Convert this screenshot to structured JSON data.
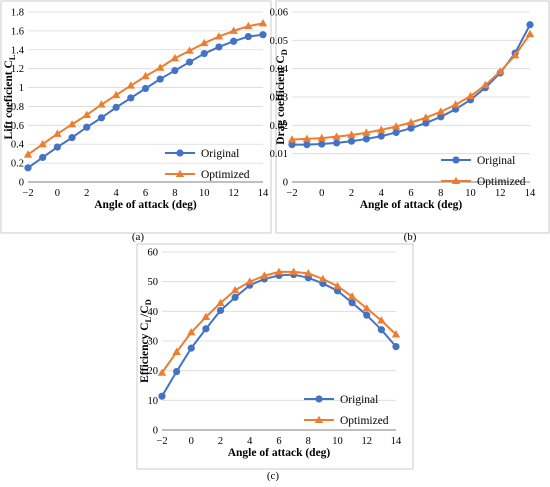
{
  "colors": {
    "original": "#4472C4",
    "optimized": "#ED7D31",
    "grid": "#d9d9d9",
    "axis": "#7f7f7f"
  },
  "chart_data": [
    {
      "id": "a",
      "type": "line",
      "caption": "(a)",
      "xlabel": "Angle of attack (deg)",
      "ylabel": "Lift coeficient C",
      "ylabel_sub": "L",
      "xlim": [
        -2,
        14
      ],
      "ylim": [
        0,
        1.8
      ],
      "xticks": [
        -2,
        0,
        2,
        4,
        6,
        8,
        10,
        12,
        14
      ],
      "xtick_labels": [
        "−2",
        "0",
        "2",
        "4",
        "6",
        "8",
        "10",
        "12",
        "14"
      ],
      "yticks": [
        0,
        0.2,
        0.4,
        0.6,
        0.8,
        1.0,
        1.2,
        1.4,
        1.6,
        1.8
      ],
      "ytick_labels": [
        "0",
        "0.2",
        "0.4",
        "0.6",
        "0.8",
        "1",
        "1.2",
        "1.4",
        "1.6",
        "1.8"
      ],
      "legend_position": "bottom-right",
      "x": [
        -2,
        -1,
        0,
        1,
        2,
        3,
        4,
        5,
        6,
        7,
        8,
        9,
        10,
        11,
        12,
        13,
        14
      ],
      "series": [
        {
          "name": "Original",
          "marker": "circle",
          "values": [
            0.15,
            0.26,
            0.37,
            0.47,
            0.58,
            0.68,
            0.79,
            0.89,
            0.99,
            1.09,
            1.18,
            1.27,
            1.36,
            1.43,
            1.49,
            1.54,
            1.56
          ]
        },
        {
          "name": "Optimized",
          "marker": "triangle",
          "values": [
            0.29,
            0.4,
            0.51,
            0.61,
            0.71,
            0.82,
            0.92,
            1.02,
            1.12,
            1.21,
            1.31,
            1.39,
            1.47,
            1.54,
            1.6,
            1.65,
            1.68
          ]
        }
      ]
    },
    {
      "id": "b",
      "type": "line",
      "caption": "(b)",
      "xlabel": "Angle of attack (deg)",
      "ylabel": "Drag coefficient C",
      "ylabel_sub": "D",
      "xlim": [
        -2,
        14
      ],
      "ylim": [
        0,
        0.06
      ],
      "xticks": [
        -2,
        0,
        2,
        4,
        6,
        8,
        10,
        12,
        14
      ],
      "xtick_labels": [
        "−2",
        "0",
        "2",
        "4",
        "6",
        "8",
        "10",
        "12",
        "14"
      ],
      "yticks": [
        0,
        0.01,
        0.02,
        0.03,
        0.04,
        0.05,
        0.06
      ],
      "ytick_labels": [
        "0",
        "0.01",
        "0.02",
        "0.03",
        "0.04",
        "0.05",
        "0.06"
      ],
      "legend_position": "bottom-right",
      "x": [
        -2,
        -1,
        0,
        1,
        2,
        3,
        4,
        5,
        6,
        7,
        8,
        9,
        10,
        11,
        12,
        13,
        14
      ],
      "series": [
        {
          "name": "Original",
          "marker": "circle",
          "values": [
            0.0132,
            0.0132,
            0.0134,
            0.0138,
            0.0144,
            0.0152,
            0.0162,
            0.0175,
            0.019,
            0.0208,
            0.023,
            0.0257,
            0.029,
            0.0333,
            0.0385,
            0.0455,
            0.0555
          ]
        },
        {
          "name": "Optimized",
          "marker": "triangle",
          "values": [
            0.015,
            0.0152,
            0.0155,
            0.016,
            0.0166,
            0.0174,
            0.0184,
            0.0196,
            0.021,
            0.0227,
            0.0248,
            0.0273,
            0.0303,
            0.0342,
            0.039,
            0.0447,
            0.0522
          ]
        }
      ]
    },
    {
      "id": "c",
      "type": "line",
      "caption": "(c)",
      "xlabel": "Angle of attack (deg)",
      "ylabel": "Efficiency C",
      "ylabel_sub": "L",
      "ylabel_mid": "/C",
      "ylabel_sub2": "D",
      "xlim": [
        -2,
        14
      ],
      "ylim": [
        0,
        60
      ],
      "xticks": [
        -2,
        0,
        2,
        4,
        6,
        8,
        10,
        12,
        14
      ],
      "xtick_labels": [
        "−2",
        "0",
        "2",
        "4",
        "6",
        "8",
        "10",
        "12",
        "14"
      ],
      "yticks": [
        0,
        10,
        20,
        30,
        40,
        50,
        60
      ],
      "ytick_labels": [
        "0",
        "10",
        "20",
        "30",
        "40",
        "50",
        "60"
      ],
      "legend_position": "bottom-right",
      "x": [
        -2,
        -1,
        0,
        1,
        2,
        3,
        4,
        5,
        6,
        7,
        8,
        9,
        10,
        11,
        12,
        13,
        14
      ],
      "series": [
        {
          "name": "Original",
          "marker": "circle",
          "values": [
            11.4,
            19.7,
            27.6,
            34.1,
            40.3,
            44.7,
            48.8,
            50.9,
            52.1,
            52.4,
            51.3,
            49.4,
            46.9,
            42.9,
            38.7,
            33.8,
            28.1
          ]
        },
        {
          "name": "Optimized",
          "marker": "triangle",
          "values": [
            19.3,
            26.3,
            32.9,
            38.1,
            42.8,
            47.1,
            50.0,
            52.0,
            53.3,
            53.3,
            52.8,
            50.9,
            48.5,
            45.0,
            41.0,
            36.9,
            32.2
          ]
        }
      ]
    }
  ]
}
